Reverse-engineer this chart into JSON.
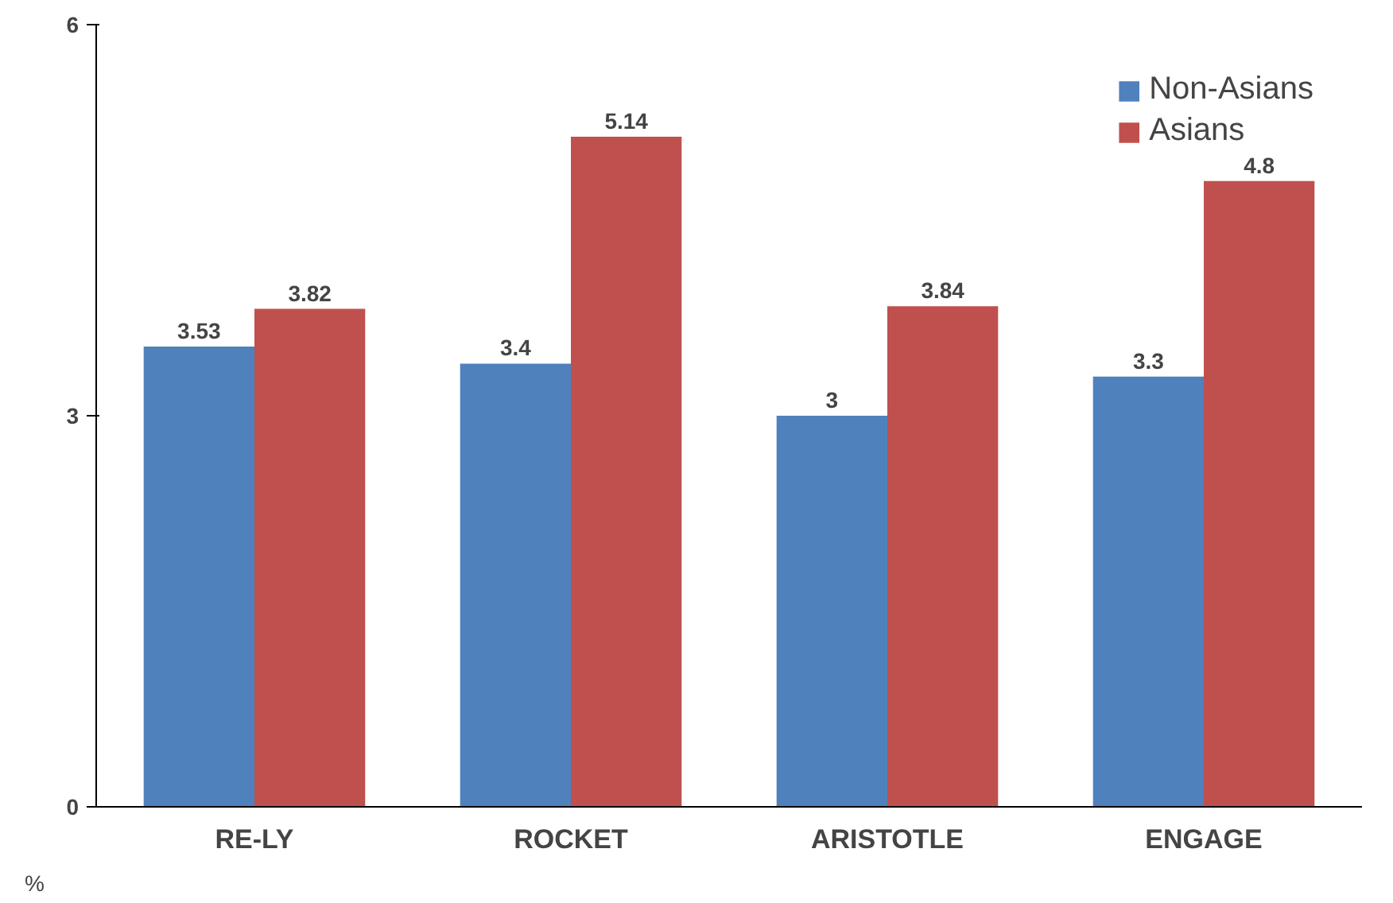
{
  "chart_data": {
    "type": "bar",
    "ylabel": "%",
    "categories": [
      "RE-LY",
      "ROCKET",
      "ARISTOTLE",
      "ENGAGE"
    ],
    "series": [
      {
        "name": "Non-Asians",
        "color": "#4f81bd",
        "values": [
          3.53,
          3.4,
          3,
          3.3
        ]
      },
      {
        "name": "Asians",
        "color": "#c0504d",
        "values": [
          3.82,
          5.14,
          3.84,
          4.8
        ]
      }
    ],
    "ylim": [
      0,
      6
    ],
    "yticks": [
      0,
      3,
      6
    ],
    "grid": false,
    "legend": "top right",
    "data_labels": true
  }
}
